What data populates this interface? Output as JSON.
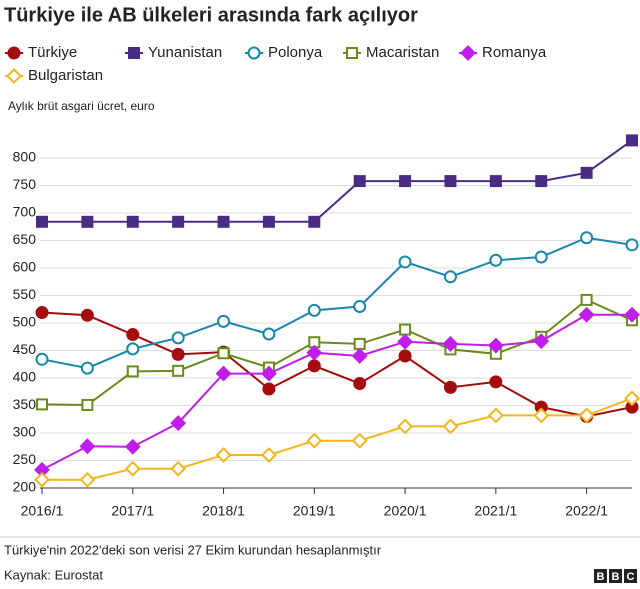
{
  "chart_data": {
    "type": "line",
    "title": "Türkiye ile AB ülkeleri arasında fark açılıyor",
    "y_label": "Aylık brüt asgari ücret, euro",
    "categories": [
      "2016/1",
      null,
      "2017/1",
      null,
      "2018/1",
      null,
      "2019/1",
      null,
      "2020/1",
      null,
      "2021/1",
      null,
      "2022/1",
      null
    ],
    "series": [
      {
        "name": "Türkiye",
        "color": "#a30d0d",
        "marker": "circle",
        "filled": true,
        "values": [
          519,
          514,
          479,
          443,
          447,
          380,
          422,
          390,
          440,
          383,
          393,
          347,
          330,
          347
        ]
      },
      {
        "name": "Yunanistan",
        "color": "#4b2c83",
        "marker": "square",
        "filled": true,
        "values": [
          684,
          684,
          684,
          684,
          684,
          684,
          684,
          758,
          758,
          758,
          758,
          758,
          773,
          832
        ]
      },
      {
        "name": "Polonya",
        "color": "#1a87a8",
        "marker": "circle",
        "filled": false,
        "values": [
          434,
          418,
          453,
          473,
          503,
          480,
          523,
          530,
          611,
          584,
          614,
          620,
          655,
          642
        ]
      },
      {
        "name": "Macaristan",
        "color": "#6a8a1c",
        "marker": "square",
        "filled": false,
        "values": [
          352,
          351,
          412,
          413,
          445,
          419,
          465,
          462,
          488,
          452,
          444,
          475,
          542,
          505
        ]
      },
      {
        "name": "Romanya",
        "color": "#c01ee8",
        "marker": "diamond",
        "filled": true,
        "values": [
          233,
          276,
          275,
          318,
          408,
          408,
          446,
          440,
          466,
          462,
          459,
          467,
          515,
          515
        ]
      },
      {
        "name": "Bulgaristan",
        "color": "#f2b71d",
        "marker": "diamond",
        "filled": false,
        "values": [
          215,
          215,
          235,
          235,
          260,
          260,
          286,
          286,
          312,
          312,
          332,
          332,
          332,
          363
        ]
      }
    ],
    "ylim": [
      200,
      840
    ],
    "yticks": [
      200,
      250,
      300,
      350,
      400,
      450,
      500,
      550,
      600,
      650,
      700,
      750,
      800
    ],
    "grid": true,
    "note": "Türkiye'nin 2022'deki son verisi 27 Ekim kurundan hesaplanmıştır",
    "source": "Kaynak: Eurostat",
    "logo": [
      "B",
      "B",
      "C"
    ]
  }
}
